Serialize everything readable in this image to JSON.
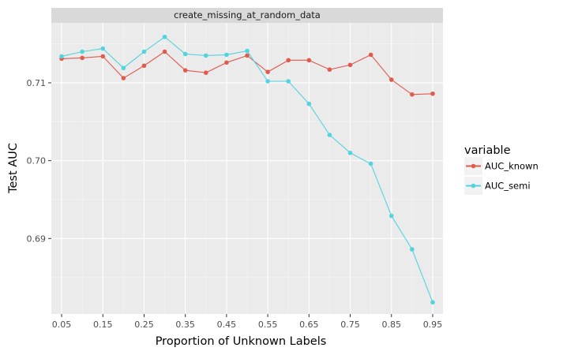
{
  "chart_data": {
    "type": "line",
    "facet_title": "create_missing_at_random_data",
    "xlabel": "Proportion of Unknown Labels",
    "ylabel": "Test AUC",
    "xlim": [
      0.025,
      0.975
    ],
    "ylim": [
      0.6803,
      0.7177
    ],
    "x_ticks": [
      0.05,
      0.15,
      0.25,
      0.35,
      0.45,
      0.55,
      0.65,
      0.75,
      0.85,
      0.95
    ],
    "y_ticks": [
      0.69,
      0.7,
      0.71
    ],
    "y_tick_labels": [
      "0.69",
      "0.70",
      "0.71"
    ],
    "grid": true,
    "legend_title": "variable",
    "legend_position": "right",
    "x": [
      0.05,
      0.1,
      0.15,
      0.2,
      0.25,
      0.3,
      0.35,
      0.4,
      0.45,
      0.5,
      0.55,
      0.6,
      0.65,
      0.7,
      0.75,
      0.8,
      0.85,
      0.9,
      0.95
    ],
    "series": [
      {
        "name": "AUC_known",
        "color": "#e05a4e",
        "values": [
          0.7131,
          0.7132,
          0.7134,
          0.7106,
          0.7122,
          0.714,
          0.7116,
          0.7113,
          0.7126,
          0.7135,
          0.7114,
          0.7129,
          0.7129,
          0.7117,
          0.7123,
          0.7136,
          0.7104,
          0.7085,
          0.7086
        ]
      },
      {
        "name": "AUC_semi",
        "color": "#52d3dd",
        "values": [
          0.7134,
          0.714,
          0.7144,
          0.7119,
          0.714,
          0.7159,
          0.7137,
          0.7135,
          0.7136,
          0.7141,
          0.7102,
          0.7102,
          0.7073,
          0.7033,
          0.701,
          0.6996,
          0.6929,
          0.6886,
          0.6818
        ]
      }
    ]
  }
}
